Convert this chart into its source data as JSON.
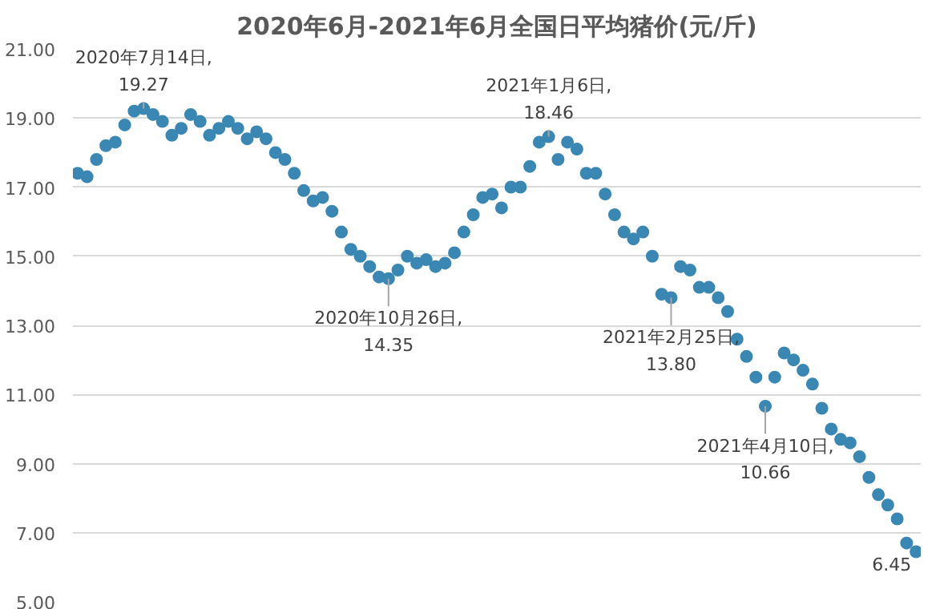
{
  "chart_data": {
    "type": "scatter",
    "title": "2020年6月-2021年6月全国日平均猪价(元/斤)",
    "marker": "circle",
    "grid": "y",
    "tick_labels": "y",
    "ylim": [
      5,
      21
    ],
    "yticks": [
      {
        "value": 5,
        "label": "5.00"
      },
      {
        "value": 7,
        "label": "7.00"
      },
      {
        "value": 9,
        "label": "9.00"
      },
      {
        "value": 11,
        "label": "11.00"
      },
      {
        "value": 13,
        "label": "13.00"
      },
      {
        "value": 15,
        "label": "15.00"
      },
      {
        "value": 17,
        "label": "17.00"
      },
      {
        "value": 19,
        "label": "19.00"
      },
      {
        "value": 21,
        "label": "21.00"
      }
    ],
    "categories": [
      null,
      null,
      null,
      null,
      null,
      null,
      null,
      null,
      null,
      null,
      null,
      null,
      null,
      null,
      null,
      null,
      null,
      null,
      null,
      null,
      null,
      null,
      null,
      null,
      null,
      null,
      null,
      null,
      null,
      null,
      null,
      null,
      null,
      null,
      null,
      null,
      null,
      null,
      null,
      null,
      null,
      null,
      null,
      null,
      null,
      null,
      null,
      null,
      null,
      null,
      null,
      null,
      null,
      null,
      null,
      null,
      null,
      null,
      null,
      null,
      null,
      null,
      null,
      null,
      null,
      null,
      null,
      null,
      null,
      null,
      null,
      null,
      null,
      null,
      null,
      null,
      null,
      null,
      null,
      null,
      null,
      null,
      null,
      null,
      null,
      null,
      null,
      null,
      null,
      null
    ],
    "series": [
      {
        "color": "#3b87b3",
        "values": [
          17.4,
          17.3,
          17.8,
          18.2,
          18.3,
          18.8,
          19.2,
          19.27,
          19.1,
          18.9,
          18.5,
          18.7,
          19.1,
          18.9,
          18.5,
          18.7,
          18.9,
          18.7,
          18.4,
          18.6,
          18.4,
          18.0,
          17.8,
          17.4,
          16.9,
          16.6,
          16.7,
          16.3,
          15.7,
          15.2,
          15.0,
          14.7,
          14.4,
          14.35,
          14.6,
          15.0,
          14.8,
          14.9,
          14.7,
          14.8,
          15.1,
          15.7,
          16.2,
          16.7,
          16.8,
          16.4,
          17.0,
          17.0,
          17.6,
          18.3,
          18.46,
          17.8,
          18.3,
          18.1,
          17.4,
          17.4,
          16.8,
          16.2,
          15.7,
          15.5,
          15.7,
          15.0,
          13.9,
          13.8,
          14.7,
          14.6,
          14.1,
          14.1,
          13.8,
          13.4,
          12.6,
          12.1,
          11.5,
          10.66,
          11.5,
          12.2,
          12.0,
          11.7,
          11.3,
          10.6,
          10.0,
          9.7,
          9.6,
          9.2,
          8.6,
          8.1,
          7.8,
          7.4,
          6.7,
          6.45
        ],
        "value_labels": [
          null,
          null,
          null,
          null,
          null,
          null,
          null,
          null,
          null,
          null,
          null,
          null,
          null,
          null,
          null,
          null,
          null,
          null,
          null,
          null,
          null,
          null,
          null,
          null,
          null,
          null,
          null,
          null,
          null,
          null,
          null,
          null,
          null,
          null,
          null,
          null,
          null,
          null,
          null,
          null,
          null,
          null,
          null,
          null,
          null,
          null,
          null,
          null,
          null,
          null,
          null,
          null,
          null,
          null,
          null,
          null,
          null,
          null,
          null,
          null,
          null,
          null,
          null,
          null,
          null,
          null,
          null,
          null,
          null,
          null,
          null,
          null,
          null,
          null,
          null,
          null,
          null,
          null,
          null,
          null,
          null,
          null,
          null,
          null,
          null,
          null,
          null,
          null,
          null,
          "6.45"
        ]
      }
    ],
    "annotations": [
      {
        "text": "2020年7月14日,\n19.27",
        "y": 19.27
      },
      {
        "text": "2020年10月26日,\n14.35",
        "y": 14.35
      },
      {
        "text": "2021年1月6日,\n18.46",
        "y": 18.46
      },
      {
        "text": "2021年2月25日,\n13.80",
        "y": 13.8
      },
      {
        "text": "2021年4月10日,\n10.66",
        "y": 10.66
      }
    ]
  }
}
